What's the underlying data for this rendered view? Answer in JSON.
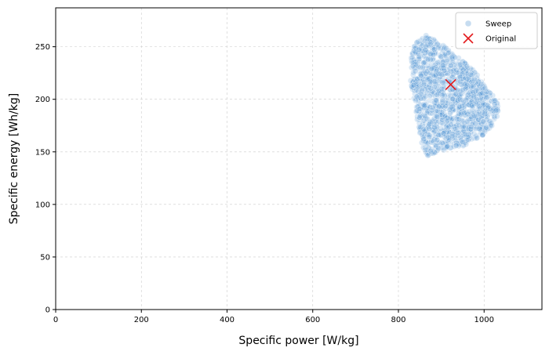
{
  "chart_data": {
    "type": "scatter",
    "title": "",
    "xlabel": "Specific power [W/kg]",
    "ylabel": "Specific energy [Wh/kg]",
    "xlim": [
      0,
      1135
    ],
    "ylim": [
      0,
      287
    ],
    "x_ticks": [
      0,
      200,
      400,
      600,
      800,
      1000
    ],
    "y_ticks": [
      0,
      50,
      100,
      150,
      200,
      250
    ],
    "grid": true,
    "legend_position": "top-right",
    "series": [
      {
        "name": "Sweep",
        "marker": "circle",
        "color": "#5b9bd5",
        "region": {
          "description_vertices": [
            [
              838,
              253
            ],
            [
              865,
              262
            ],
            [
              910,
              250
            ],
            [
              975,
              228
            ],
            [
              1020,
              205
            ],
            [
              1035,
              196
            ],
            [
              1030,
              180
            ],
            [
              995,
              165
            ],
            [
              950,
              155
            ],
            [
              890,
              150
            ],
            [
              868,
              146
            ],
            [
              855,
              155
            ],
            [
              840,
              190
            ],
            [
              828,
              218
            ],
            [
              830,
              243
            ]
          ],
          "x_range": [
            826,
            1037
          ],
          "y_range": [
            145,
            262
          ]
        }
      },
      {
        "name": "Original",
        "marker": "x",
        "color": "#e31a1c",
        "points": [
          [
            922,
            214
          ]
        ]
      }
    ]
  }
}
